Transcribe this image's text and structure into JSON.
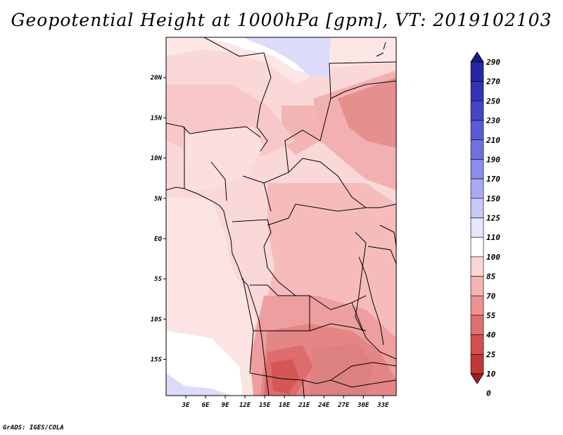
{
  "title": "Geopotential Height at 1000hPa [gpm], VT: 2019102103",
  "credit": "GrADS: IGES/COLA",
  "map": {
    "lat_labels": [
      "20N",
      "15N",
      "10N",
      "5N",
      "EQ",
      "5S",
      "10S",
      "15S"
    ],
    "lon_labels": [
      "3E",
      "6E",
      "9E",
      "12E",
      "15E",
      "18E",
      "21E",
      "24E",
      "27E",
      "30E",
      "33E"
    ],
    "lat_values": [
      20,
      15,
      10,
      5,
      0,
      -5,
      -10,
      -15
    ],
    "lon_values": [
      3,
      6,
      9,
      12,
      15,
      18,
      21,
      24,
      27,
      30,
      33
    ],
    "domain": {
      "lon_min": 0,
      "lon_max": 35,
      "lat_min": -19.5,
      "lat_max": 25
    }
  },
  "colorbar": {
    "labels": [
      "290",
      "270",
      "250",
      "230",
      "210",
      "190",
      "170",
      "150",
      "125",
      "110",
      "100",
      "85",
      "70",
      "55",
      "40",
      "25",
      "10",
      "0"
    ],
    "colors": [
      "#1a1a8c",
      "#2626a6",
      "#3333b8",
      "#4444c8",
      "#5a5ad6",
      "#7070e0",
      "#8c8ceb",
      "#aaaaf2",
      "#c8c8f7",
      "#e6e6fc",
      "#ffffff",
      "#fbd6d6",
      "#f5b4b4",
      "#ec9292",
      "#e07070",
      "#d44e4e",
      "#c23636",
      "#a51c1c"
    ]
  }
}
